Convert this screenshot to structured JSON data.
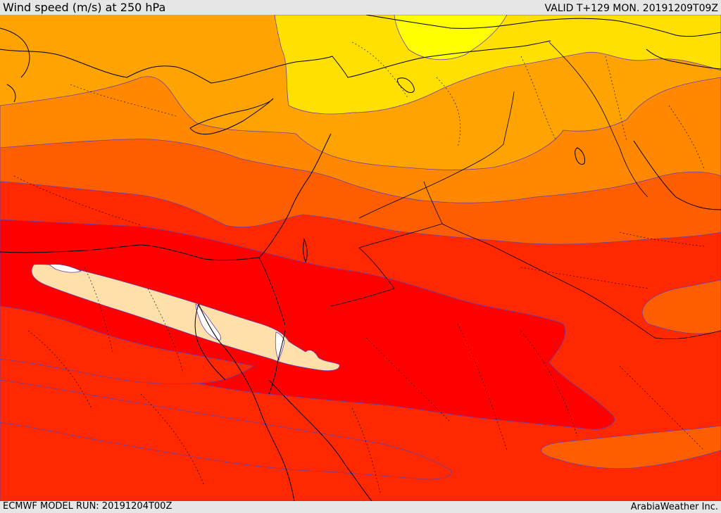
{
  "header": {
    "title": "Wind speed (m/s) at 250 hPa",
    "valid_time": "VALID T+129 MON. 20191209T09Z"
  },
  "footer": {
    "model_run": "ECMWF MODEL RUN: 20191204T00Z",
    "credit": "ArabiaWeather Inc."
  },
  "map": {
    "field": "wind-speed-250hPa",
    "colors": {
      "background": "#e6e6e6",
      "yellow_bright": "#ffff00",
      "yellow": "#ffe000",
      "orange_light": "#ffa300",
      "orange": "#ff8800",
      "orange_red": "#ff5e00",
      "red_orange": "#ff2800",
      "red": "#ff0000",
      "jet_core": "#ffdfaa",
      "jet_max": "#ffffff",
      "contour_line": "#6a3fa8",
      "coastline": "#000000"
    }
  }
}
